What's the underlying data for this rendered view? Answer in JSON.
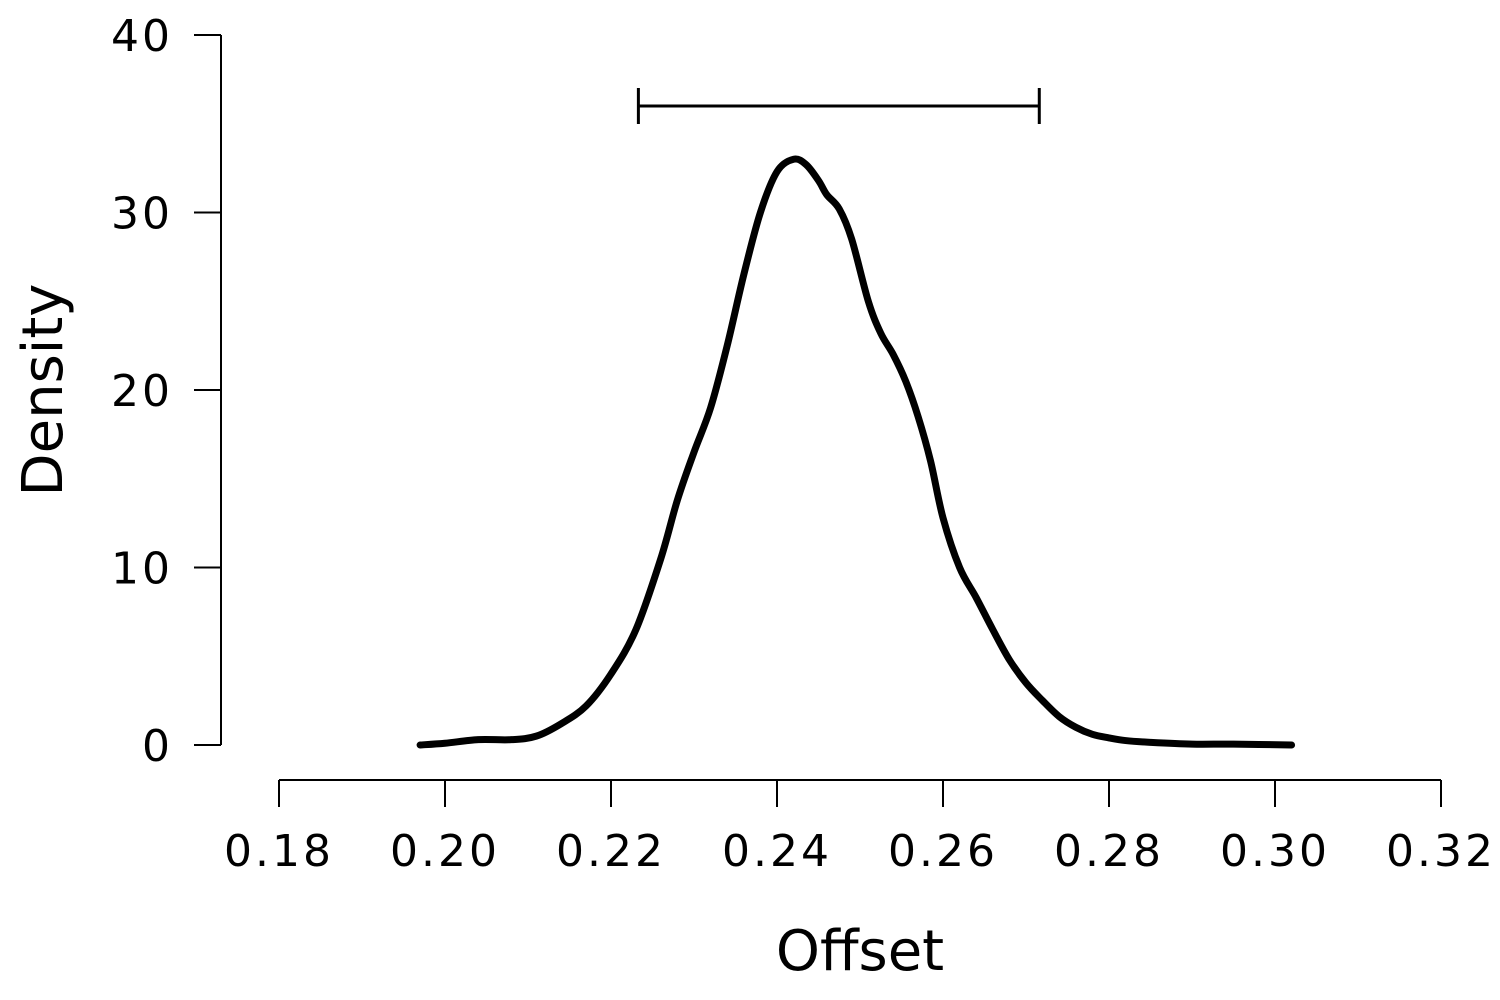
{
  "chart_data": {
    "type": "line",
    "xlabel": "Offset",
    "ylabel": "Density",
    "xlim": [
      0.18,
      0.32
    ],
    "ylim": [
      0,
      40
    ],
    "x_ticks": [
      0.18,
      0.2,
      0.22,
      0.24,
      0.26,
      0.28,
      0.3,
      0.32
    ],
    "x_tick_labels": [
      "0.18",
      "0.20",
      "0.22",
      "0.24",
      "0.26",
      "0.28",
      "0.30",
      "0.32"
    ],
    "y_ticks": [
      0,
      10,
      20,
      30,
      40
    ],
    "y_tick_labels": [
      "0",
      "10",
      "20",
      "30",
      "40"
    ],
    "grid": false,
    "legend": "none",
    "line_color": "#000000",
    "series": [
      {
        "x": [
          0.197,
          0.2,
          0.204,
          0.208,
          0.211,
          0.214,
          0.217,
          0.22,
          0.223,
          0.226,
          0.228,
          0.23,
          0.232,
          0.234,
          0.236,
          0.238,
          0.24,
          0.242,
          0.2435,
          0.245,
          0.246,
          0.2475,
          0.249,
          0.251,
          0.2525,
          0.254,
          0.2555,
          0.257,
          0.2585,
          0.26,
          0.262,
          0.264,
          0.266,
          0.268,
          0.27,
          0.272,
          0.274,
          0.276,
          0.278,
          0.28,
          0.282,
          0.285,
          0.29,
          0.295,
          0.302
        ],
        "y": [
          0,
          0.1,
          0.3,
          0.3,
          0.5,
          1.2,
          2.2,
          4.0,
          6.5,
          10.5,
          13.8,
          16.5,
          19.0,
          22.5,
          26.5,
          30.0,
          32.3,
          33.0,
          32.7,
          31.8,
          31.0,
          30.2,
          28.5,
          25.0,
          23.2,
          22.0,
          20.5,
          18.5,
          16.0,
          12.8,
          10.0,
          8.3,
          6.5,
          4.8,
          3.5,
          2.5,
          1.6,
          1.0,
          0.6,
          0.4,
          0.25,
          0.15,
          0.05,
          0.05,
          0
        ]
      }
    ],
    "interval": {
      "x_start": 0.2233,
      "x_end": 0.2716,
      "y": 36
    }
  }
}
